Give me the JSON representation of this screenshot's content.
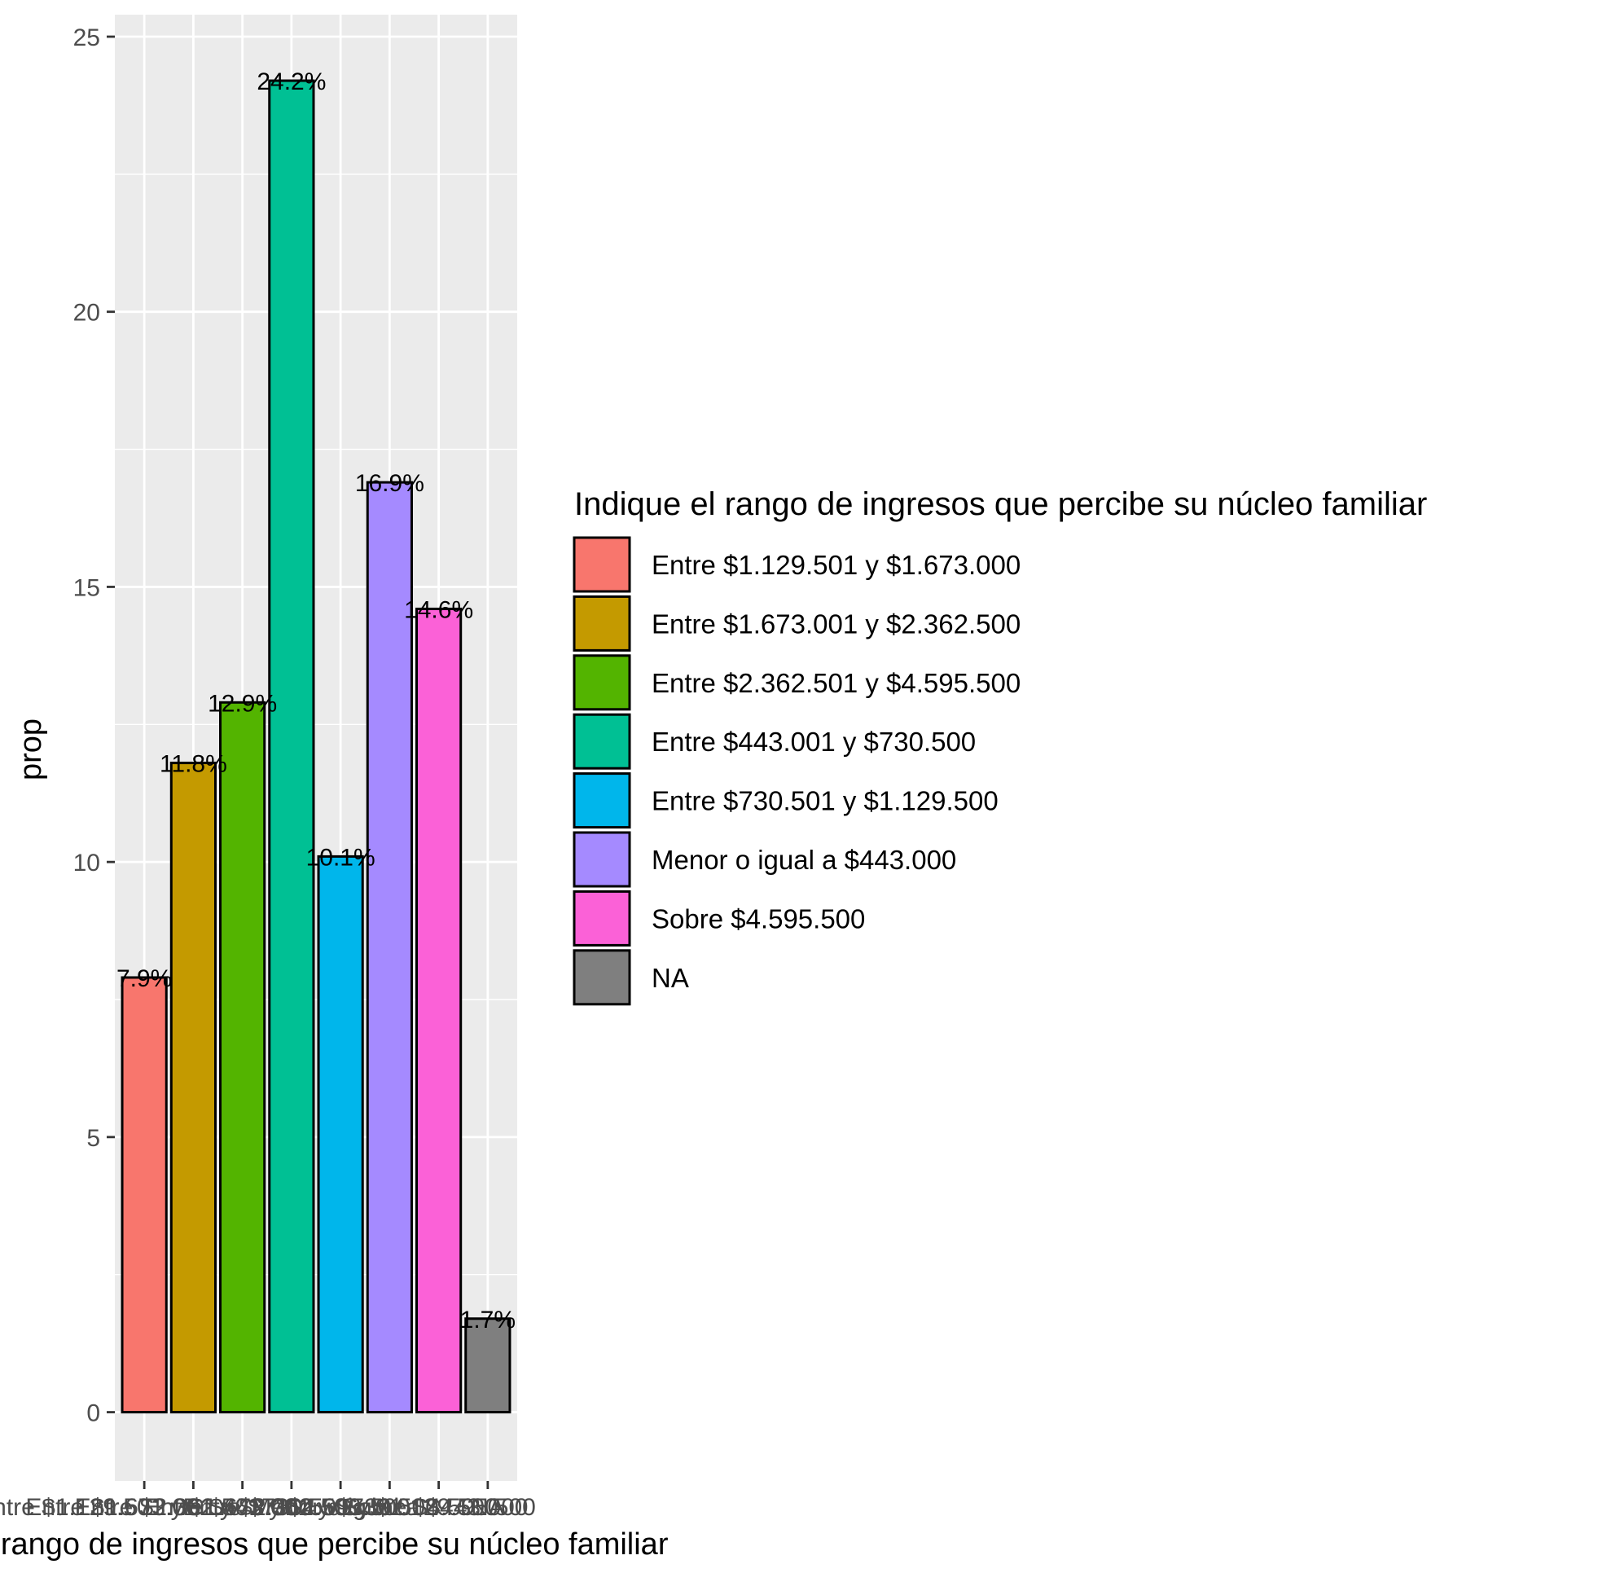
{
  "chart_data": {
    "type": "bar",
    "title": "",
    "xlabel": "Indique el rango de ingresos que percibe su núcleo familiar",
    "ylabel": "prop",
    "ylim": [
      -1.25,
      25.4
    ],
    "yticks": [
      0,
      5,
      10,
      15,
      20,
      25
    ],
    "grid": true,
    "legend_position": "right",
    "legend_title": "Indique el rango de ingresos que percibe su núcleo familiar",
    "categories": [
      "Entre $1.129.501 y $1.673.000",
      "Entre $1.673.001 y $2.362.500",
      "Entre $2.362.501 y $4.595.500",
      "Entre $443.001 y $730.500",
      "Entre $730.501 y $1.129.500",
      "Menor o igual a $443.000",
      "Sobre $4.595.500",
      "NA"
    ],
    "values": [
      7.9,
      11.8,
      12.9,
      24.2,
      10.1,
      16.9,
      14.6,
      1.7
    ],
    "labels": [
      "7.9%",
      "11.8%",
      "12.9%",
      "24.2%",
      "10.1%",
      "16.9%",
      "14.6%",
      "1.7%"
    ],
    "colors": [
      "#F8766D",
      "#C49A00",
      "#53B400",
      "#00C094",
      "#00B6EB",
      "#A58AFF",
      "#FB61D7",
      "#7F7F7F"
    ]
  }
}
